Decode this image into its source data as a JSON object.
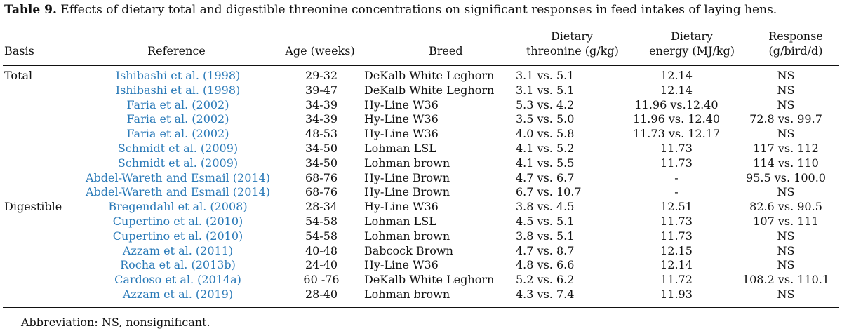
{
  "caption": {
    "label": "Table 9.",
    "text": "Effects of dietary total and digestible threonine concentrations on significant responses in feed intakes of laying hens."
  },
  "headers": {
    "basis": "Basis",
    "reference": "Reference",
    "age": "Age (weeks)",
    "breed": "Breed",
    "threonine_line1": "Dietary",
    "threonine_line2": "threonine (g/kg)",
    "energy_line1": "Dietary",
    "energy_line2": "energy (MJ/kg)",
    "response_line1": "Response",
    "response_line2": "(g/bird/d)"
  },
  "rows": [
    {
      "basis": "Total",
      "reference": "Ishibashi et al. (1998)",
      "age": "29-32",
      "breed": "DeKalb White Leghorn",
      "threonine": "3.1 vs. 5.1",
      "energy": "12.14",
      "response": "NS"
    },
    {
      "basis": "",
      "reference": "Ishibashi et al. (1998)",
      "age": "39-47",
      "breed": "DeKalb White Leghorn",
      "threonine": "3.1 vs. 5.1",
      "energy": "12.14",
      "response": "NS"
    },
    {
      "basis": "",
      "reference": "Faria et al. (2002)",
      "age": "34-39",
      "breed": "Hy-Line W36",
      "threonine": "5.3 vs. 4.2",
      "energy": "11.96 vs.12.40",
      "response": "NS"
    },
    {
      "basis": "",
      "reference": "Faria et al. (2002)",
      "age": "34-39",
      "breed": "Hy-Line W36",
      "threonine": "3.5 vs. 5.0",
      "energy": "11.96 vs. 12.40",
      "response": "72.8 vs. 99.7"
    },
    {
      "basis": "",
      "reference": "Faria et al. (2002)",
      "age": "48-53",
      "breed": "Hy-Line W36",
      "threonine": "4.0 vs. 5.8",
      "energy": "11.73 vs. 12.17",
      "response": "NS"
    },
    {
      "basis": "",
      "reference": "Schmidt et al. (2009)",
      "age": "34-50",
      "breed": "Lohman LSL",
      "threonine": "4.1 vs. 5.2",
      "energy": "11.73",
      "response": "117 vs. 112"
    },
    {
      "basis": "",
      "reference": "Schmidt et al. (2009)",
      "age": "34-50",
      "breed": "Lohman brown",
      "threonine": "4.1 vs. 5.5",
      "energy": "11.73",
      "response": "114 vs. 110"
    },
    {
      "basis": "",
      "reference": "Abdel-Wareth and Esmail (2014)",
      "age": "68-76",
      "breed": "Hy-Line Brown",
      "threonine": "4.7 vs. 6.7",
      "energy": "-",
      "response": "95.5 vs. 100.0"
    },
    {
      "basis": "",
      "reference": "Abdel-Wareth and Esmail (2014)",
      "age": "68-76",
      "breed": "Hy-Line Brown",
      "threonine": "6.7 vs. 10.7",
      "energy": "-",
      "response": "NS"
    },
    {
      "basis": "Digestible",
      "reference": "Bregendahl et al. (2008)",
      "age": "28-34",
      "breed": "Hy-Line W36",
      "threonine": "3.8 vs. 4.5",
      "energy": "12.51",
      "response": "82.6 vs. 90.5"
    },
    {
      "basis": "",
      "reference": "Cupertino et al. (2010)",
      "age": "54-58",
      "breed": "Lohman LSL",
      "threonine": "4.5 vs. 5.1",
      "energy": "11.73",
      "response": "107 vs. 111"
    },
    {
      "basis": "",
      "reference": "Cupertino et al. (2010)",
      "age": "54-58",
      "breed": "Lohman brown",
      "threonine": "3.8 vs. 5.1",
      "energy": "11.73",
      "response": "NS"
    },
    {
      "basis": "",
      "reference": "Azzam et al. (2011)",
      "age": "40-48",
      "breed": "Babcock Brown",
      "threonine": "4.7 vs. 8.7",
      "energy": "12.15",
      "response": "NS"
    },
    {
      "basis": "",
      "reference": "Rocha et al. (2013b)",
      "age": "24-40",
      "breed": "Hy-Line W36",
      "threonine": "4.8 vs. 6.6",
      "energy": "12.14",
      "response": "NS"
    },
    {
      "basis": "",
      "reference": "Cardoso et al. (2014a)",
      "age": "60 -76",
      "breed": "DeKalb White Leghorn",
      "threonine": "5.2 vs. 6.2",
      "energy": "11.72",
      "response": "108.2 vs. 110.1"
    },
    {
      "basis": "",
      "reference": "Azzam et al. (2019)",
      "age": "28-40",
      "breed": "Lohman brown",
      "threonine": "4.3 vs. 7.4",
      "energy": "11.93",
      "response": "NS"
    }
  ],
  "footnote": "Abbreviation: NS, nonsignificant.",
  "colors": {
    "link": "#2a7ab8",
    "text": "#111111"
  }
}
